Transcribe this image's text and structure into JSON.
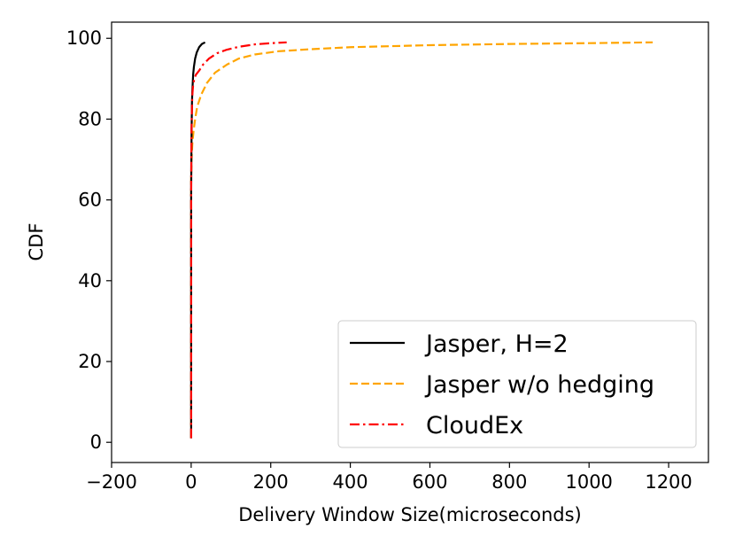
{
  "chart_data": {
    "type": "line",
    "xlabel": "Delivery Window Size(microseconds)",
    "ylabel": "CDF",
    "xlim": [
      -200,
      1300
    ],
    "ylim": [
      -5,
      104
    ],
    "xticks": [
      -200,
      0,
      200,
      400,
      600,
      800,
      1000,
      1200
    ],
    "xtick_labels": [
      "−200",
      "0",
      "200",
      "400",
      "600",
      "800",
      "1000",
      "1200"
    ],
    "yticks": [
      0,
      20,
      40,
      60,
      80,
      100
    ],
    "ytick_labels": [
      "0",
      "20",
      "40",
      "60",
      "80",
      "100"
    ],
    "grid": false,
    "legend_position": "lower-right",
    "series": [
      {
        "name": "Jasper, H=2",
        "color": "#000000",
        "style": "solid",
        "x": [
          0,
          0,
          0.5,
          1,
          1.5,
          2,
          3,
          4,
          5,
          7,
          10,
          14,
          20,
          27,
          35
        ],
        "y": [
          1,
          60,
          70,
          76,
          80,
          84,
          87,
          89,
          91,
          93,
          95,
          96.5,
          97.8,
          98.6,
          99
        ]
      },
      {
        "name": "Jasper w/o hedging",
        "color": "#ffa500",
        "style": "dashed",
        "x": [
          0,
          0,
          1,
          3,
          6,
          10,
          15,
          25,
          40,
          60,
          90,
          120,
          160,
          220,
          300,
          400,
          600,
          800,
          1000,
          1160
        ],
        "y": [
          1,
          65,
          70,
          74,
          77,
          80,
          83,
          86,
          89,
          91.5,
          93.5,
          95,
          96,
          96.8,
          97.3,
          97.8,
          98.3,
          98.6,
          98.8,
          99
        ]
      },
      {
        "name": "CloudEx",
        "color": "#ff0000",
        "style": "dashdot",
        "x": [
          0,
          0,
          0.5,
          1,
          2,
          3,
          5,
          8,
          12,
          20,
          30,
          45,
          65,
          90,
          120,
          160,
          200,
          240
        ],
        "y": [
          1,
          62,
          72,
          78,
          83,
          86,
          88.5,
          90,
          91,
          92,
          93.5,
          95,
          96.3,
          97.2,
          97.9,
          98.5,
          98.8,
          99
        ]
      }
    ]
  }
}
